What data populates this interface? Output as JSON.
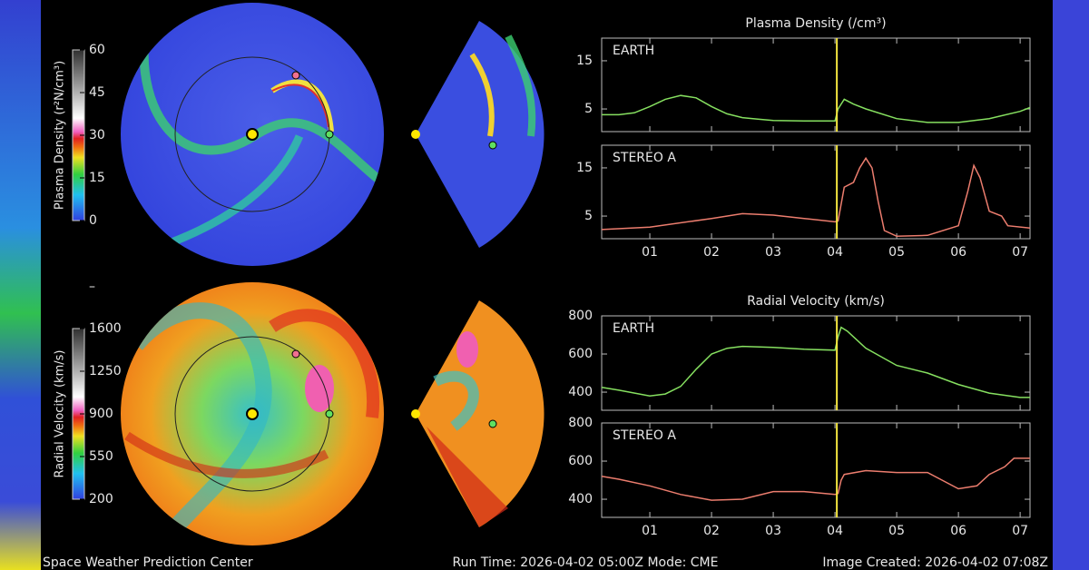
{
  "chart_data": [
    {
      "type": "line",
      "title": "Plasma Density (/cm³)",
      "label": "EARTH",
      "color": "#86e060",
      "x": [
        0.22,
        0.5,
        0.75,
        1.0,
        1.25,
        1.5,
        1.75,
        2.0,
        2.25,
        2.5,
        2.75,
        3.0,
        3.5,
        4.0,
        4.05,
        4.15,
        4.3,
        4.5,
        5.0,
        5.5,
        6.0,
        6.5,
        7.0,
        7.16
      ],
      "values": [
        3.8,
        3.8,
        4.2,
        5.5,
        7,
        7.8,
        7.3,
        5.5,
        4,
        3.2,
        2.9,
        2.6,
        2.5,
        2.5,
        5,
        7,
        6,
        5,
        3,
        2.2,
        2.2,
        3,
        4.5,
        5.3
      ],
      "xlim": [
        0.22,
        7.16
      ],
      "ylim": [
        0.3,
        19.7
      ],
      "yticks": [
        5,
        15
      ],
      "xticks": [
        1,
        2,
        3,
        4,
        5,
        6,
        7
      ],
      "vlines": [
        4.03
      ]
    },
    {
      "type": "line",
      "label": "STEREO A",
      "color": "#ec7d6e",
      "x": [
        0.22,
        1.0,
        2.0,
        2.5,
        3.0,
        3.5,
        4.0,
        4.05,
        4.15,
        4.3,
        4.4,
        4.5,
        4.6,
        4.7,
        4.8,
        5.0,
        5.5,
        6.0,
        6.15,
        6.25,
        6.35,
        6.5,
        6.7,
        6.8,
        7.16
      ],
      "values": [
        2.2,
        2.7,
        4.5,
        5.5,
        5.2,
        4.5,
        3.8,
        4,
        11,
        12,
        15,
        17,
        15,
        8,
        2,
        0.8,
        1,
        3,
        10,
        15.5,
        13,
        6,
        5,
        3,
        2.5
      ],
      "xlim": [
        0.22,
        7.16
      ],
      "ylim": [
        0.3,
        19.7
      ],
      "yticks": [
        5,
        15
      ],
      "xticks": [
        {
          "value": 1,
          "label": "01"
        },
        {
          "value": 2,
          "label": "02"
        },
        {
          "value": 3,
          "label": "03"
        },
        {
          "value": 4,
          "label": "04"
        },
        {
          "value": 5,
          "label": "05"
        },
        {
          "value": 6,
          "label": "06"
        },
        {
          "value": 7,
          "label": "07"
        }
      ],
      "vlines": [
        4.03
      ]
    },
    {
      "type": "line",
      "title": "Radial Velocity (km/s)",
      "label": "EARTH",
      "color": "#86e060",
      "x": [
        0.22,
        0.5,
        1.0,
        1.25,
        1.5,
        1.75,
        2.0,
        2.25,
        2.5,
        3.0,
        3.5,
        4.0,
        4.05,
        4.1,
        4.2,
        4.5,
        5.0,
        5.5,
        6.0,
        6.5,
        7.0,
        7.16
      ],
      "values": [
        425,
        410,
        380,
        390,
        430,
        520,
        600,
        630,
        640,
        635,
        625,
        620,
        690,
        740,
        720,
        630,
        540,
        500,
        440,
        395,
        372,
        372
      ],
      "xlim": [
        0.22,
        7.16
      ],
      "ylim": [
        305,
        800
      ],
      "yticks": [
        400,
        600,
        800
      ],
      "xticks": [
        1,
        2,
        3,
        4,
        5,
        6,
        7
      ],
      "vlines": [
        4.03
      ]
    },
    {
      "type": "line",
      "label": "STEREO A",
      "color": "#ec7d6e",
      "x": [
        0.22,
        0.5,
        1.0,
        1.5,
        2.0,
        2.5,
        3.0,
        3.5,
        4.0,
        4.05,
        4.1,
        4.15,
        4.5,
        5.0,
        5.5,
        6.0,
        6.3,
        6.5,
        6.75,
        6.9,
        7.16
      ],
      "values": [
        520,
        505,
        470,
        425,
        395,
        400,
        440,
        440,
        425,
        430,
        500,
        530,
        550,
        540,
        540,
        455,
        470,
        530,
        570,
        615,
        615
      ],
      "xlim": [
        0.22,
        7.16
      ],
      "ylim": [
        305,
        800
      ],
      "yticks": [
        400,
        600,
        800
      ],
      "xticks": [
        {
          "value": 1,
          "label": "01"
        },
        {
          "value": 2,
          "label": "02"
        },
        {
          "value": 3,
          "label": "03"
        },
        {
          "value": 4,
          "label": "04"
        },
        {
          "value": 5,
          "label": "05"
        },
        {
          "value": 6,
          "label": "06"
        },
        {
          "value": 7,
          "label": "07"
        }
      ],
      "vlines": [
        4.03
      ]
    }
  ],
  "colorbars": [
    {
      "label": "Plasma Density (r²N/cm³)",
      "lim": [
        0,
        60
      ],
      "ticks": [
        0,
        15,
        30,
        45,
        60
      ]
    },
    {
      "label": "Radial Velocity (km/s)",
      "lim": [
        200,
        1600
      ],
      "ticks": [
        200,
        550,
        900,
        1250,
        1600
      ]
    }
  ],
  "footer": {
    "left": "Space Weather Prediction Center",
    "center": "Run Time: 2026-04-02 05:00Z  Mode: CME",
    "right": "Image Created: 2026-04-02 07:08Z"
  }
}
